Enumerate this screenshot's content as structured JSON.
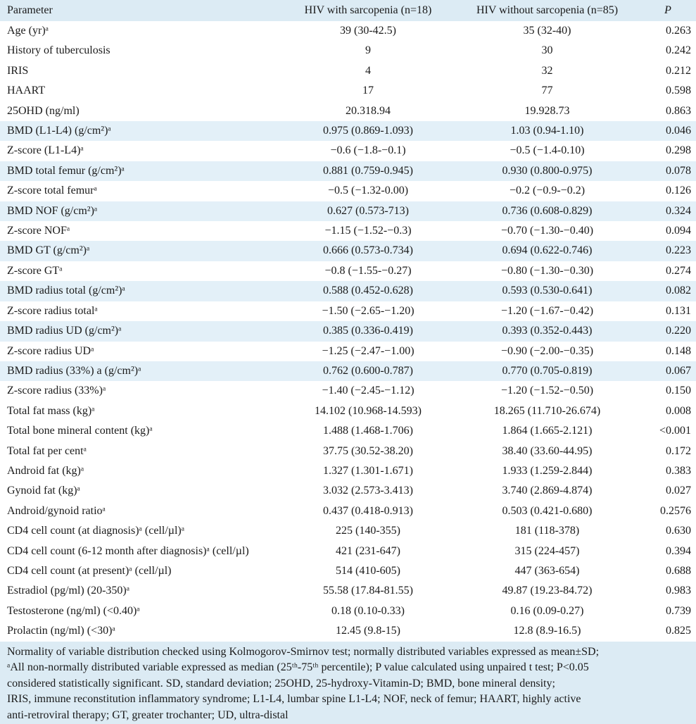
{
  "table": {
    "headers": {
      "parameter": "Parameter",
      "with_sarcopenia": "HIV with sarcopenia (n=18)",
      "without_sarcopenia": "HIV without sarcopenia (n=85)",
      "p": "P"
    },
    "rows": [
      {
        "param": "Age (yr)ᵃ",
        "with": "39 (30-42.5)",
        "without": "35 (32-40)",
        "p": "0.263",
        "shaded": false
      },
      {
        "param": "History of tuberculosis",
        "with": "9",
        "without": "30",
        "p": "0.242",
        "shaded": false
      },
      {
        "param": "IRIS",
        "with": "4",
        "without": "32",
        "p": "0.212",
        "shaded": false
      },
      {
        "param": "HAART",
        "with": "17",
        "without": "77",
        "p": "0.598",
        "shaded": false
      },
      {
        "param": "25OHD (ng/ml)",
        "with": "20.318.94",
        "without": "19.928.73",
        "p": "0.863",
        "shaded": false
      },
      {
        "param": "BMD (L1-L4) (g/cm²)ᵃ",
        "with": "0.975 (0.869-1.093)",
        "without": "1.03 (0.94-1.10)",
        "p": "0.046",
        "shaded": true
      },
      {
        "param": "Z-score (L1-L4)ᵃ",
        "with": "−0.6 (−1.8-−0.1)",
        "without": "−0.5 (−1.4-0.10)",
        "p": "0.298",
        "shaded": false
      },
      {
        "param": "BMD total femur (g/cm²)ᵃ",
        "with": "0.881 (0.759-0.945)",
        "without": "0.930 (0.800-0.975)",
        "p": "0.078",
        "shaded": true
      },
      {
        "param": "Z-score total femurᵃ",
        "with": "−0.5 (−1.32-0.00)",
        "without": "−0.2 (−0.9-−0.2)",
        "p": "0.126",
        "shaded": false
      },
      {
        "param": "BMD NOF (g/cm²)ᵃ",
        "with": "0.627 (0.573-713)",
        "without": "0.736 (0.608-0.829)",
        "p": "0.324",
        "shaded": true
      },
      {
        "param": "Z-score NOFᵃ",
        "with": "−1.15 (−1.52-−0.3)",
        "without": "−0.70 (−1.30-−0.40)",
        "p": "0.094",
        "shaded": false
      },
      {
        "param": "BMD GT (g/cm²)ᵃ",
        "with": "0.666 (0.573-0.734)",
        "without": "0.694 (0.622-0.746)",
        "p": "0.223",
        "shaded": true
      },
      {
        "param": "Z-score GTᵃ",
        "with": "−0.8 (−1.55-−0.27)",
        "without": "−0.80 (−1.30-−0.30)",
        "p": "0.274",
        "shaded": false
      },
      {
        "param": "BMD radius total (g/cm²)ᵃ",
        "with": "0.588 (0.452-0.628)",
        "without": "0.593 (0.530-0.641)",
        "p": "0.082",
        "shaded": true
      },
      {
        "param": "Z-score radius totalᵃ",
        "with": "−1.50 (−2.65-−1.20)",
        "without": "−1.20 (−1.67-−0.42)",
        "p": "0.131",
        "shaded": false
      },
      {
        "param": "BMD radius UD (g/cm²)ᵃ",
        "with": "0.385 (0.336-0.419)",
        "without": "0.393 (0.352-0.443)",
        "p": "0.220",
        "shaded": true
      },
      {
        "param": "Z-score radius UDᵃ",
        "with": "−1.25 (−2.47-−1.00)",
        "without": "−0.90 (−2.00-−0.35)",
        "p": "0.148",
        "shaded": false
      },
      {
        "param": "BMD radius (33%) a (g/cm²)ᵃ",
        "with": "0.762 (0.600-0.787)",
        "without": "0.770 (0.705-0.819)",
        "p": "0.067",
        "shaded": true
      },
      {
        "param": "Z-score radius (33%)ᵃ",
        "with": "−1.40 (−2.45-−1.12)",
        "without": "−1.20 (−1.52-−0.50)",
        "p": "0.150",
        "shaded": false
      },
      {
        "param": "Total fat mass (kg)ᵃ",
        "with": "14.102 (10.968-14.593)",
        "without": "18.265 (11.710-26.674)",
        "p": "0.008",
        "shaded": false
      },
      {
        "param": "Total bone mineral content (kg)ᵃ",
        "with": "1.488 (1.468-1.706)",
        "without": "1.864 (1.665-2.121)",
        "p": "<0.001",
        "shaded": false
      },
      {
        "param": "Total fat per centᵃ",
        "with": "37.75 (30.52-38.20)",
        "without": "38.40 (33.60-44.95)",
        "p": "0.172",
        "shaded": false
      },
      {
        "param": "Android fat (kg)ᵃ",
        "with": "1.327 (1.301-1.671)",
        "without": "1.933 (1.259-2.844)",
        "p": "0.383",
        "shaded": false
      },
      {
        "param": "Gynoid fat (kg)ᵃ",
        "with": "3.032 (2.573-3.413)",
        "without": "3.740 (2.869-4.874)",
        "p": "0.027",
        "shaded": false
      },
      {
        "param": "Android/gynoid ratioᵃ",
        "with": "0.437 (0.418-0.913)",
        "without": "0.503 (0.421-0.680)",
        "p": "0.2576",
        "shaded": false
      },
      {
        "param": "CD4 cell count (at diagnosis)ᵃ (cell/µl)ᵃ",
        "with": "225 (140-355)",
        "without": "181 (118-378)",
        "p": "0.630",
        "shaded": false
      },
      {
        "param": "CD4 cell count (6-12 month after diagnosis)ᵃ (cell/µl)",
        "with": "421 (231-647)",
        "without": "315 (224-457)",
        "p": "0.394",
        "shaded": false
      },
      {
        "param": "CD4 cell count (at present)ᵃ (cell/µl)",
        "with": "514 (410-605)",
        "without": "447 (363-654)",
        "p": "0.688",
        "shaded": false
      },
      {
        "param": "Estradiol (pg/ml) (20-350)ᵃ",
        "with": "55.58 (17.84-81.55)",
        "without": "49.87 (19.23-84.72)",
        "p": "0.983",
        "shaded": false
      },
      {
        "param": "Testosterone (ng/ml) (<0.40)ᵃ",
        "with": "0.18 (0.10-0.33)",
        "without": "0.16 (0.09-0.27)",
        "p": "0.739",
        "shaded": false
      },
      {
        "param": "Prolactin (ng/ml) (<30)ᵃ",
        "with": "12.45 (9.8-15)",
        "without": "12.8 (8.9-16.5)",
        "p": "0.825",
        "shaded": false
      }
    ]
  },
  "footnote": {
    "line1": "Normality of variable distribution checked using Kolmogorov-Smirnov test; normally distributed variables expressed as mean±SD;",
    "line2": "ᵃAll non-normally distributed variable expressed as median (25ᵗʰ-75ᵗʰ percentile); P value calculated using unpaired t test; P<0.05",
    "line3": "considered statistically significant. SD, standard deviation; 25OHD, 25-hydroxy-Vitamin-D; BMD, bone mineral density;",
    "line4": "IRIS, immune reconstitution inflammatory syndrome; L1-L4, lumbar spine L1-L4; NOF, neck of femur; HAART, highly active",
    "line5": "anti-retroviral therapy; GT, greater trochanter; UD, ultra-distal"
  },
  "colors": {
    "header_bg": "#dcebf4",
    "shaded_row_bg": "#e3f0f8",
    "footnote_bg": "#dcebf4"
  }
}
